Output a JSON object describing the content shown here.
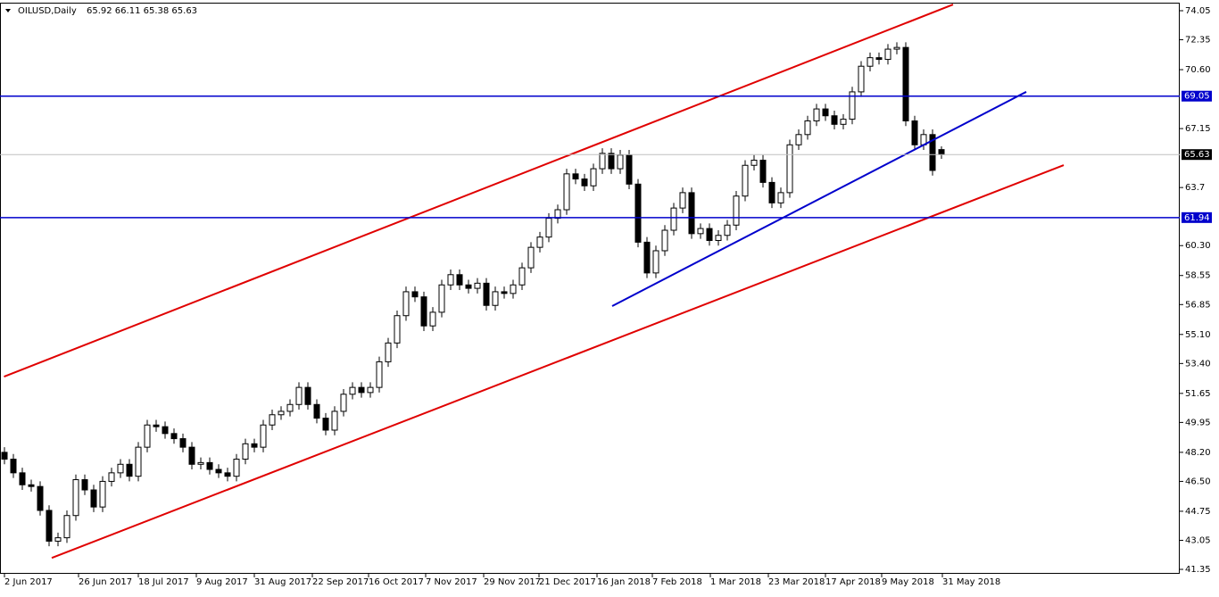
{
  "chart_data": {
    "type": "candlestick",
    "title": "OILUSD,Daily",
    "ohlc_text": "65.92 66.11 65.38 65.63",
    "open": [
      48.2,
      47.8,
      47.0,
      46.3,
      46.2,
      44.8,
      43.0,
      43.2,
      44.5,
      46.6,
      46.0,
      45.0,
      46.5,
      47.0,
      47.5,
      46.8,
      48.5,
      49.8,
      49.7,
      49.3,
      49.0,
      48.5,
      47.5,
      47.6,
      47.2,
      47.0,
      46.8,
      47.8,
      48.7,
      48.5,
      49.8,
      50.4,
      50.6,
      51.0,
      52.0,
      51.0,
      50.2,
      49.5,
      50.6,
      51.6,
      52.0,
      51.7,
      52.0,
      53.5,
      54.6,
      56.2,
      57.6,
      57.3,
      55.6,
      56.4,
      58.0,
      58.6,
      58.0,
      57.8,
      58.1,
      56.8,
      57.6,
      57.5,
      58.0,
      59.0,
      60.2,
      60.8,
      61.9,
      62.4,
      64.5,
      64.2,
      63.8,
      64.8,
      65.7,
      64.8,
      65.6,
      63.9,
      60.5,
      58.7,
      60.0,
      61.2,
      62.5,
      63.4,
      61.0,
      61.3,
      60.6,
      60.9,
      61.5,
      63.2,
      65.0,
      65.3,
      64.0,
      62.8,
      63.4,
      66.2,
      66.8,
      67.6,
      68.3,
      67.9,
      67.4,
      67.7,
      69.3,
      70.8,
      71.3,
      71.2,
      71.8,
      71.9,
      67.6,
      66.2,
      66.8,
      65.92
    ],
    "high": [
      48.5,
      48.1,
      47.3,
      46.6,
      46.5,
      45.1,
      43.5,
      44.8,
      46.9,
      46.9,
      46.3,
      46.8,
      47.3,
      47.8,
      47.8,
      48.8,
      50.1,
      50.1,
      50.0,
      49.6,
      49.3,
      48.8,
      47.9,
      47.9,
      47.5,
      47.3,
      48.1,
      49.0,
      49.0,
      50.1,
      50.7,
      50.9,
      51.3,
      52.3,
      52.3,
      51.3,
      50.5,
      50.9,
      51.9,
      52.3,
      52.3,
      52.3,
      53.8,
      54.9,
      56.5,
      57.9,
      57.9,
      57.6,
      56.7,
      58.3,
      58.9,
      58.9,
      58.3,
      58.4,
      58.4,
      57.9,
      57.9,
      58.3,
      59.3,
      60.5,
      61.1,
      62.2,
      62.7,
      64.8,
      64.8,
      64.5,
      65.1,
      66.0,
      66.0,
      65.9,
      65.9,
      64.2,
      60.8,
      60.3,
      61.5,
      62.8,
      63.7,
      63.7,
      61.6,
      61.6,
      61.2,
      61.8,
      63.5,
      65.3,
      65.6,
      65.6,
      64.3,
      63.7,
      66.5,
      67.1,
      67.9,
      68.6,
      68.6,
      68.2,
      68.0,
      69.6,
      71.1,
      71.6,
      71.6,
      72.1,
      72.2,
      72.2,
      67.9,
      67.1,
      67.1,
      66.11
    ],
    "low": [
      47.5,
      46.7,
      46.0,
      45.9,
      44.5,
      42.7,
      42.7,
      42.9,
      44.2,
      45.7,
      44.7,
      44.7,
      46.2,
      46.7,
      46.5,
      46.5,
      48.2,
      49.4,
      49.0,
      48.7,
      48.2,
      47.2,
      47.2,
      46.9,
      46.7,
      46.5,
      46.5,
      47.5,
      48.2,
      48.2,
      49.5,
      50.1,
      50.3,
      50.7,
      50.7,
      49.9,
      49.2,
      49.2,
      50.3,
      51.3,
      51.4,
      51.4,
      51.7,
      53.2,
      54.3,
      55.9,
      57.0,
      55.3,
      55.3,
      56.1,
      57.7,
      57.7,
      57.5,
      57.5,
      56.5,
      56.5,
      57.2,
      57.2,
      57.7,
      58.7,
      59.9,
      60.5,
      61.6,
      62.1,
      63.9,
      63.5,
      63.5,
      64.5,
      64.5,
      64.5,
      63.6,
      60.2,
      58.4,
      58.4,
      59.7,
      60.9,
      62.2,
      60.7,
      60.7,
      60.3,
      60.3,
      60.6,
      61.2,
      62.9,
      64.7,
      63.7,
      62.5,
      62.5,
      63.1,
      65.9,
      66.5,
      67.3,
      67.6,
      67.1,
      67.1,
      67.4,
      69.0,
      70.5,
      70.9,
      70.9,
      71.5,
      67.3,
      65.9,
      65.9,
      64.4,
      65.38
    ],
    "close": [
      47.8,
      47.0,
      46.3,
      46.2,
      44.8,
      43.0,
      43.2,
      44.5,
      46.6,
      46.0,
      45.0,
      46.5,
      47.0,
      47.5,
      46.8,
      48.5,
      49.8,
      49.7,
      49.3,
      49.0,
      48.5,
      47.5,
      47.6,
      47.2,
      47.0,
      46.8,
      47.8,
      48.7,
      48.5,
      49.8,
      50.4,
      50.6,
      51.0,
      52.0,
      51.0,
      50.2,
      49.5,
      50.6,
      51.6,
      52.0,
      51.7,
      52.0,
      53.5,
      54.6,
      56.2,
      57.6,
      57.3,
      55.6,
      56.4,
      58.0,
      58.6,
      58.0,
      57.8,
      58.1,
      56.8,
      57.6,
      57.5,
      58.0,
      59.0,
      60.2,
      60.8,
      61.9,
      62.4,
      64.5,
      64.2,
      63.8,
      64.8,
      65.7,
      64.8,
      65.6,
      63.9,
      60.5,
      58.7,
      60.0,
      61.2,
      62.5,
      63.4,
      61.0,
      61.3,
      60.6,
      60.9,
      61.5,
      63.2,
      65.0,
      65.3,
      64.0,
      62.8,
      63.4,
      66.2,
      66.8,
      67.6,
      68.3,
      67.9,
      67.4,
      67.7,
      69.3,
      70.8,
      71.3,
      71.2,
      71.8,
      71.9,
      67.6,
      66.2,
      66.8,
      64.7,
      65.63
    ],
    "xlim": [
      -0.5,
      131.7
    ],
    "ylim": [
      41.09,
      74.52
    ],
    "xticks": [
      {
        "value": 0,
        "label": "2 Jun 2017"
      },
      {
        "value": 8.3,
        "label": "26 Jun 2017"
      },
      {
        "value": 15,
        "label": "18 Jul 2017"
      },
      {
        "value": 21.5,
        "label": "9 Aug 2017"
      },
      {
        "value": 28,
        "label": "31 Aug 2017"
      },
      {
        "value": 34.5,
        "label": "22 Sep 2017"
      },
      {
        "value": 40.8,
        "label": "16 Oct 2017"
      },
      {
        "value": 47.2,
        "label": "7 Nov 2017"
      },
      {
        "value": 53.7,
        "label": "29 Nov 2017"
      },
      {
        "value": 59.9,
        "label": "21 Dec 2017"
      },
      {
        "value": 66.4,
        "label": "16 Jan 2018"
      },
      {
        "value": 72.6,
        "label": "7 Feb 2018"
      },
      {
        "value": 79.1,
        "label": "1 Mar 2018"
      },
      {
        "value": 85.6,
        "label": "23 Mar 2018"
      },
      {
        "value": 92,
        "label": "17 Apr 2018"
      },
      {
        "value": 98.3,
        "label": "9 May 2018"
      },
      {
        "value": 105.1,
        "label": "31 May 2018"
      }
    ],
    "yticks": [
      74.05,
      72.35,
      {
        "value": 70.6,
        "label": "70.60"
      },
      67.15,
      63.7,
      {
        "value": 60.3,
        "label": "60.30"
      },
      58.55,
      56.85,
      {
        "value": 55.1,
        "label": "55.10"
      },
      {
        "value": 53.4,
        "label": "53.40"
      },
      51.65,
      49.95,
      {
        "value": 48.2,
        "label": "48.20"
      },
      {
        "value": 46.5,
        "label": "46.50"
      },
      44.75,
      43.05,
      41.35
    ],
    "hlines": [
      {
        "value": 69.05,
        "color": "#0000cc"
      },
      {
        "value": 65.63,
        "color": "#000000"
      },
      {
        "value": 61.94,
        "color": "#0000cc"
      }
    ],
    "trendlines": [
      {
        "color": "#e00000",
        "points": [
          [
            -0.05,
            52.63
          ],
          [
            106.3,
            74.41
          ]
        ]
      },
      {
        "color": "#e00000",
        "points": [
          [
            5.3,
            42.02
          ],
          [
            118.7,
            65.01
          ]
        ]
      },
      {
        "color": "#0000cc",
        "points": [
          [
            68.1,
            56.76
          ],
          [
            114.5,
            69.3
          ]
        ]
      }
    ],
    "bull_color": "#ffffff",
    "bear_color": "#000000"
  }
}
